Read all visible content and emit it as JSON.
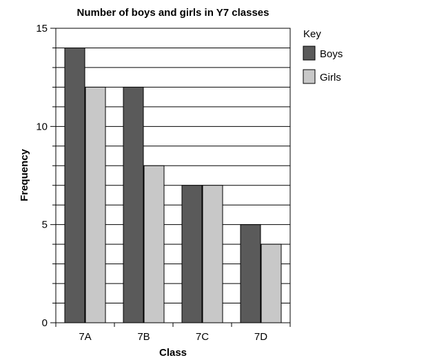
{
  "chart_data": {
    "type": "bar",
    "title": "Number of boys and girls in Y7 classes",
    "xlabel": "Class",
    "ylabel": "Frequency",
    "categories": [
      "7A",
      "7B",
      "7C",
      "7D"
    ],
    "series": [
      {
        "name": "Boys",
        "values": [
          14,
          12,
          7,
          5
        ],
        "color": "#5a5a5a"
      },
      {
        "name": "Girls",
        "values": [
          12,
          8,
          7,
          4
        ],
        "color": "#c8c8c8"
      }
    ],
    "ylim": [
      0,
      15
    ],
    "y_major_ticks": [
      0,
      5,
      10,
      15
    ],
    "y_minor_step": 1,
    "grid": true,
    "legend": {
      "title": "Key",
      "position": "right"
    }
  }
}
